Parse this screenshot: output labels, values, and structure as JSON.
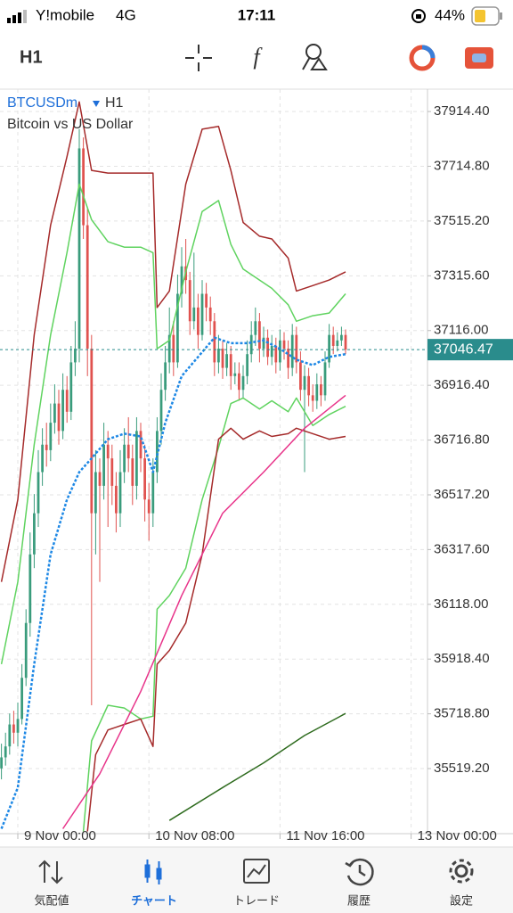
{
  "status_bar": {
    "carrier": "Y!mobile",
    "network": "4G",
    "time": "17:11",
    "battery": "44%"
  },
  "toolbar": {
    "timeframe": "H1"
  },
  "chart_data": {
    "type": "candlestick",
    "symbol": "BTCUSDm",
    "timeframe": "H1",
    "description": "Bitcoin vs US Dollar",
    "up_color": "#3a9c7c",
    "down_color": "#e0524f",
    "grid": true,
    "last_price": 37046.47,
    "last_price_color": "#2a8c8c",
    "ylim": [
      35282,
      37996
    ],
    "yticks": [
      {
        "value": 37914.4,
        "label": "37914.40"
      },
      {
        "value": 37714.8,
        "label": "37714.80"
      },
      {
        "value": 37515.2,
        "label": "37515.20"
      },
      {
        "value": 37315.6,
        "label": "37315.60"
      },
      {
        "value": 37116,
        "label": "37116.00"
      },
      {
        "value": 36916.4,
        "label": "36916.40"
      },
      {
        "value": 36716.8,
        "label": "36716.80"
      },
      {
        "value": 36517.2,
        "label": "36517.20"
      },
      {
        "value": 36317.6,
        "label": "36317.60"
      },
      {
        "value": 36118,
        "label": "36118.00"
      },
      {
        "value": 35918.4,
        "label": "35918.40"
      },
      {
        "value": 35718.8,
        "label": "35718.80"
      },
      {
        "value": 35519.2,
        "label": "35519.20"
      }
    ],
    "xlim": [
      -0.35,
      104
    ],
    "xticks": [
      {
        "value": 4,
        "label": "9 Nov 00:00"
      },
      {
        "value": 36,
        "label": "10 Nov 08:00"
      },
      {
        "value": 68,
        "label": "11 Nov 16:00"
      },
      {
        "value": 100,
        "label": "13 Nov 00:00"
      }
    ],
    "ohlc": [
      [
        35520,
        35610,
        35480,
        35560
      ],
      [
        35560,
        35650,
        35530,
        35600
      ],
      [
        35600,
        35720,
        35570,
        35680
      ],
      [
        35680,
        35730,
        35610,
        35650
      ],
      [
        35650,
        35760,
        35600,
        35700
      ],
      [
        35700,
        35900,
        35680,
        35850
      ],
      [
        35850,
        36100,
        35820,
        36050
      ],
      [
        36050,
        36380,
        36000,
        36300
      ],
      [
        36300,
        36520,
        36250,
        36450
      ],
      [
        36450,
        36680,
        36400,
        36600
      ],
      [
        36600,
        36760,
        36550,
        36700
      ],
      [
        36700,
        36780,
        36620,
        36680
      ],
      [
        36680,
        36850,
        36640,
        36780
      ],
      [
        36780,
        36920,
        36740,
        36850
      ],
      [
        36850,
        36900,
        36700,
        36750
      ],
      [
        36750,
        36960,
        36720,
        36900
      ],
      [
        36900,
        36950,
        36780,
        36820
      ],
      [
        36820,
        37060,
        36790,
        37000
      ],
      [
        37000,
        37150,
        36950,
        37050
      ],
      [
        37050,
        37850,
        37000,
        37780
      ],
      [
        37780,
        37820,
        37450,
        37500
      ],
      [
        37500,
        37560,
        36950,
        37050
      ],
      [
        37050,
        37100,
        35750,
        36450
      ],
      [
        36450,
        36680,
        36300,
        36600
      ],
      [
        36600,
        36650,
        36200,
        36550
      ],
      [
        36550,
        36780,
        36500,
        36700
      ],
      [
        36700,
        36750,
        36400,
        36650
      ],
      [
        36650,
        36700,
        36480,
        36550
      ],
      [
        36550,
        36600,
        36380,
        36450
      ],
      [
        36450,
        36680,
        36400,
        36600
      ],
      [
        36600,
        36760,
        36560,
        36700
      ],
      [
        36700,
        36800,
        36600,
        36650
      ],
      [
        36650,
        36700,
        36480,
        36550
      ],
      [
        36550,
        36800,
        36500,
        36750
      ],
      [
        36750,
        36780,
        36600,
        36650
      ],
      [
        36650,
        36700,
        36420,
        36500
      ],
      [
        36500,
        36560,
        36350,
        36450
      ],
      [
        36450,
        36650,
        36400,
        36600
      ],
      [
        36600,
        36800,
        36560,
        36750
      ],
      [
        36750,
        36960,
        36700,
        36900
      ],
      [
        36900,
        37060,
        36860,
        37000
      ],
      [
        37000,
        37200,
        36960,
        37100
      ],
      [
        37100,
        37150,
        36950,
        37000
      ],
      [
        37000,
        37320,
        36980,
        37250
      ],
      [
        37250,
        37420,
        37200,
        37350
      ],
      [
        37350,
        37450,
        37250,
        37300
      ],
      [
        37300,
        37330,
        37100,
        37150
      ],
      [
        37150,
        37400,
        37120,
        37200
      ],
      [
        37200,
        37250,
        37050,
        37100
      ],
      [
        37100,
        37300,
        37080,
        37250
      ],
      [
        37250,
        37290,
        37150,
        37200
      ],
      [
        37200,
        37240,
        37100,
        37150
      ],
      [
        37150,
        37180,
        36950,
        37000
      ],
      [
        37000,
        37100,
        36960,
        37050
      ],
      [
        37050,
        37080,
        36940,
        36980
      ],
      [
        36980,
        37070,
        36950,
        37030
      ],
      [
        37030,
        37060,
        36900,
        36950
      ],
      [
        36950,
        37000,
        36920,
        36960
      ],
      [
        36960,
        37000,
        36860,
        36900
      ],
      [
        36900,
        36990,
        36870,
        36950
      ],
      [
        36950,
        37080,
        36920,
        37030
      ],
      [
        37030,
        37150,
        37000,
        37100
      ],
      [
        37100,
        37200,
        37060,
        37150
      ],
      [
        37150,
        37180,
        37000,
        37050
      ],
      [
        37050,
        37130,
        37020,
        37090
      ],
      [
        37090,
        37120,
        36990,
        37020
      ],
      [
        37020,
        37100,
        36990,
        37060
      ],
      [
        37060,
        37090,
        36960,
        37000
      ],
      [
        37000,
        37120,
        36970,
        37080
      ],
      [
        37080,
        37110,
        37010,
        37050
      ],
      [
        37050,
        37080,
        36940,
        36980
      ],
      [
        36980,
        37140,
        36950,
        37100
      ],
      [
        37100,
        37130,
        36960,
        37000
      ],
      [
        37000,
        37040,
        36860,
        36900
      ],
      [
        36900,
        36990,
        36600,
        36950
      ],
      [
        36950,
        36980,
        36840,
        36880
      ],
      [
        36880,
        36920,
        36820,
        36860
      ],
      [
        36860,
        36960,
        36830,
        36920
      ],
      [
        36920,
        36950,
        36840,
        36880
      ],
      [
        36880,
        37040,
        36860,
        37000
      ],
      [
        37000,
        37140,
        36980,
        37100
      ],
      [
        37100,
        37130,
        37030,
        37060
      ],
      [
        37060,
        37110,
        37040,
        37080
      ],
      [
        37080,
        37130,
        37060,
        37100
      ],
      [
        37100,
        37120,
        37030,
        37046.47
      ]
    ],
    "series": [
      {
        "color": "#a52a2a",
        "width": 1.5,
        "x": [
          0,
          4,
          8,
          12,
          16,
          19,
          22,
          26,
          30,
          34,
          37,
          38,
          41,
          45,
          49,
          53,
          56,
          59,
          63,
          66,
          70,
          72,
          76,
          80,
          84
        ],
        "values": [
          36200,
          36500,
          37100,
          37500,
          37750,
          37950,
          37700,
          37690,
          37690,
          37690,
          37690,
          37200,
          37260,
          37650,
          37850,
          37860,
          37700,
          37510,
          37460,
          37450,
          37380,
          37260,
          37280,
          37300,
          37330
        ]
      },
      {
        "color": "#5fd35f",
        "width": 1.5,
        "x": [
          0,
          4,
          8,
          12,
          16,
          19,
          22,
          26,
          30,
          34,
          37,
          38,
          41,
          45,
          49,
          53,
          56,
          59,
          63,
          66,
          70,
          72,
          76,
          80,
          84
        ],
        "values": [
          35900,
          36200,
          36700,
          37100,
          37400,
          37650,
          37520,
          37440,
          37420,
          37420,
          37400,
          37050,
          37080,
          37330,
          37550,
          37590,
          37430,
          37340,
          37300,
          37270,
          37210,
          37150,
          37170,
          37180,
          37250
        ]
      },
      {
        "color": "#1e88e5",
        "width": 2.5,
        "dash": true,
        "x": [
          0,
          4,
          8,
          12,
          16,
          19,
          22,
          26,
          30,
          34,
          37,
          40,
          44,
          48,
          52,
          56,
          60,
          64,
          68,
          72,
          76,
          80,
          84
        ],
        "values": [
          35300,
          35450,
          35900,
          36300,
          36500,
          36600,
          36650,
          36720,
          36740,
          36730,
          36600,
          36780,
          36950,
          37020,
          37090,
          37070,
          37070,
          37080,
          37050,
          37010,
          36990,
          37020,
          37030
        ]
      },
      {
        "color": "#5fd35f",
        "width": 1.5,
        "x": [
          20,
          22,
          26,
          30,
          34,
          37,
          38,
          41,
          45,
          49,
          53,
          56,
          59,
          63,
          66,
          70,
          72,
          76,
          80,
          84
        ],
        "values": [
          35290,
          35620,
          35750,
          35740,
          35700,
          35710,
          36100,
          36150,
          36250,
          36500,
          36690,
          36850,
          36870,
          36830,
          36860,
          36820,
          36870,
          36770,
          36810,
          36840
        ]
      },
      {
        "color": "#a52a2a",
        "width": 1.5,
        "x": [
          21,
          23,
          26,
          30,
          34,
          37,
          38,
          41,
          45,
          49,
          53,
          56,
          59,
          63,
          66,
          70,
          72,
          76,
          80,
          84
        ],
        "values": [
          35290,
          35570,
          35660,
          35680,
          35700,
          35600,
          35900,
          35950,
          36050,
          36300,
          36720,
          36760,
          36720,
          36750,
          36730,
          36740,
          36760,
          36740,
          36720,
          36730
        ]
      },
      {
        "color": "#e8348a",
        "width": 1.5,
        "x": [
          15,
          24,
          34,
          44,
          54,
          64,
          74,
          84
        ],
        "values": [
          35300,
          35500,
          35800,
          36150,
          36450,
          36600,
          36760,
          36880
        ]
      },
      {
        "color": "#2e6b1e",
        "width": 1.5,
        "x": [
          41,
          54,
          64,
          74,
          84
        ],
        "values": [
          35330,
          35450,
          35540,
          35640,
          35720
        ]
      }
    ]
  },
  "tabs": {
    "items": [
      "気配値",
      "チャート",
      "トレード",
      "履歴",
      "設定"
    ]
  }
}
